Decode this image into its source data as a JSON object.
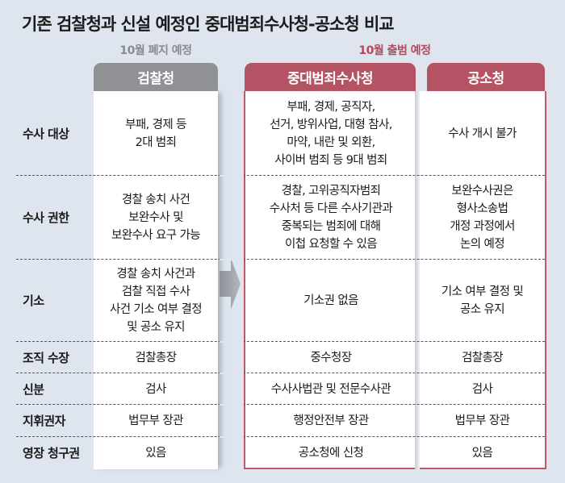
{
  "title": "기존 검찰청과 신설 예정인 중대범죄수사청-공소청 비교",
  "groups": {
    "left_note": "10월 폐지 예정",
    "right_note": "10월 출범 예정"
  },
  "columns": [
    "검찰청",
    "중대범죄수사청",
    "공소청"
  ],
  "colors": {
    "background": "#dfe5ee",
    "gray_header": "#909194",
    "red_header": "#b45363",
    "red_note": "#b5475e"
  },
  "arrow_icon": "arrow-right",
  "rows": [
    {
      "label": "수사 대상",
      "values": [
        "부패, 경제 등\n2대 범죄",
        "부패, 경제, 공직자,\n선거, 방위사업, 대형 참사,\n마약, 내란 및 외환,\n사이버 범죄 등 9대 범죄",
        "수사 개시 불가"
      ]
    },
    {
      "label": "수사 권한",
      "values": [
        "경찰 송치 사건\n보완수사 및\n보완수사 요구 가능",
        "경찰, 고위공직자범죄\n수사처 등 다른 수사기관과\n중복되는 범죄에 대해\n이첩 요청할 수 있음",
        "보완수사권은\n형사소송법\n개정 과정에서\n논의 예정"
      ]
    },
    {
      "label": "기소",
      "values": [
        "경찰 송치 사건과\n검찰 직접 수사\n사건 기소 여부 결정\n및 공소 유지",
        "기소권 없음",
        "기소 여부 결정 및\n공소 유지"
      ]
    },
    {
      "label": "조직 수장",
      "values": [
        "검찰총장",
        "중수청장",
        "검찰총장"
      ]
    },
    {
      "label": "신분",
      "values": [
        "검사",
        "수사사법관 및 전문수사관",
        "검사"
      ]
    },
    {
      "label": "지휘권자",
      "values": [
        "법무부 장관",
        "행정안전부 장관",
        "법무부 장관"
      ]
    },
    {
      "label": "영장 청구권",
      "values": [
        "있음",
        "공소청에 신청",
        "있음"
      ]
    }
  ]
}
